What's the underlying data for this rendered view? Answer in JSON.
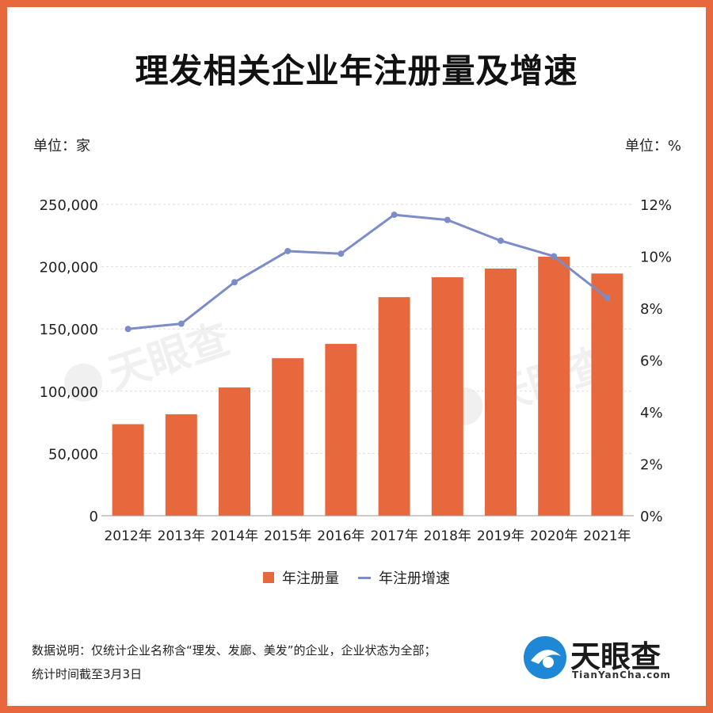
{
  "title": "理发相关企业年注册量及增速",
  "units": {
    "left": "单位：家",
    "right": "单位：%"
  },
  "colors": {
    "bar": "#e8683e",
    "line": "#7b8cc8",
    "frame": "#e8683e"
  },
  "chart_data": {
    "type": "bar",
    "categories": [
      "2012年",
      "2013年",
      "2014年",
      "2015年",
      "2016年",
      "2017年",
      "2018年",
      "2019年",
      "2020年",
      "2021年"
    ],
    "series": [
      {
        "name": "年注册量",
        "type": "bar",
        "axis": "left",
        "values": [
          73500,
          81500,
          103000,
          126500,
          138000,
          175500,
          191500,
          198500,
          208000,
          194500
        ]
      },
      {
        "name": "年注册增速",
        "type": "line",
        "axis": "right",
        "values": [
          7.2,
          7.4,
          9.0,
          10.2,
          10.1,
          11.6,
          11.4,
          10.6,
          10.0,
          8.4
        ]
      }
    ],
    "y_left": {
      "ylim": [
        0,
        250000
      ],
      "ticks": [
        "0",
        "50,000",
        "100,000",
        "150,000",
        "200,000",
        "250,000"
      ],
      "values": [
        0,
        50000,
        100000,
        150000,
        200000,
        250000
      ]
    },
    "y_right": {
      "ylim": [
        0,
        12
      ],
      "ticks": [
        "0%",
        "2%",
        "4%",
        "6%",
        "8%",
        "10%",
        "12%"
      ],
      "values": [
        0,
        2,
        4,
        6,
        8,
        10,
        12
      ]
    },
    "grid": true,
    "legend_position": "bottom-center"
  },
  "legend": {
    "bar_label": "年注册量",
    "line_label": "年注册增速"
  },
  "note": {
    "line1": "数据说明：仅统计企业名称含“理发、发廊、美发”的企业，企业状态为全部；",
    "line2": "统计时间截至3月3日"
  },
  "logo": {
    "name": "天眼查",
    "url_text": "TianYanCha.com"
  }
}
